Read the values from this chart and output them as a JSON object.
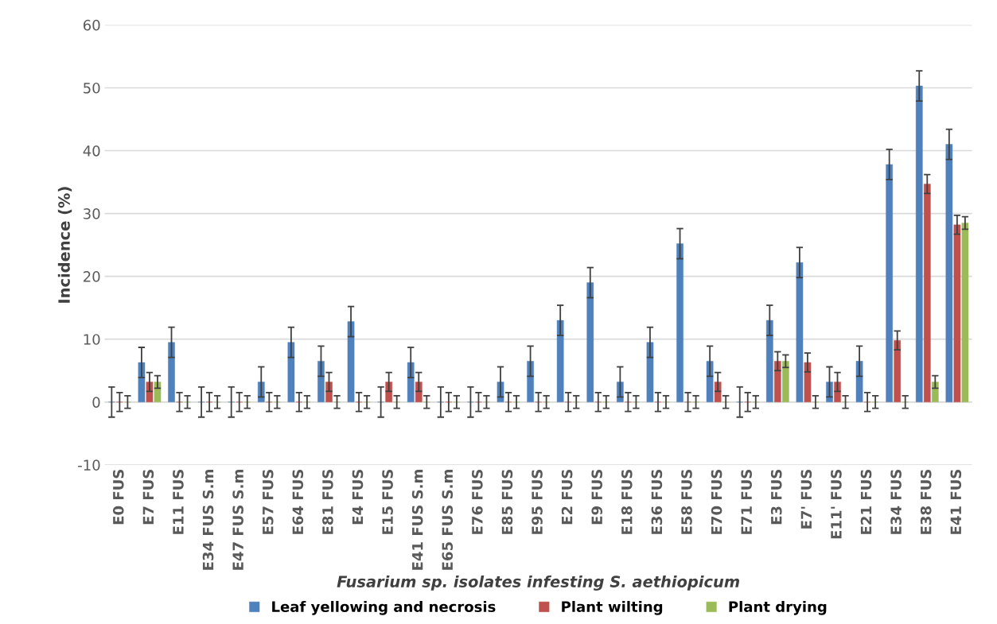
{
  "chart_data": {
    "type": "bar",
    "xlabel": "Fusarium sp. isolates infesting S. aethiopicum",
    "ylabel": "Incidence (%)",
    "categories": [
      "E0 FUS",
      "E7 FUS",
      "E11 FUS",
      "E34 FUS S.m",
      "E47 FUS S.m",
      "E57 FUS",
      "E64 FUS",
      "E81 FUS",
      "E4 FUS",
      "E15 FUS",
      "E41 FUS S.m",
      "E65 FUS S.m",
      "E76 FUS",
      "E85 FUS",
      "E95 FUS",
      "E2 FUS",
      "E9 FUS",
      "E18 FUS",
      "E36 FUS",
      "E58 FUS",
      "E70 FUS",
      "E71 FUS",
      "E3 FUS",
      "E7' FUS",
      "E11' FUS",
      "E21 FUS",
      "E34 FUS",
      "E38 FUS",
      "E41 FUS"
    ],
    "series": [
      {
        "name": "Leaf yellowing and necrosis",
        "color": "#4f81bd",
        "values": [
          0,
          6.3,
          9.5,
          0,
          0,
          3.2,
          9.5,
          6.5,
          12.8,
          0,
          6.3,
          0,
          0,
          3.2,
          6.5,
          13,
          19,
          3.2,
          9.5,
          25.2,
          6.5,
          0,
          13,
          22.2,
          3.2,
          6.5,
          37.8,
          50.3,
          41
        ],
        "errors": [
          2.4,
          2.4,
          2.4,
          2.4,
          2.4,
          2.4,
          2.4,
          2.4,
          2.4,
          2.4,
          2.4,
          2.4,
          2.4,
          2.4,
          2.4,
          2.4,
          2.4,
          2.4,
          2.4,
          2.4,
          2.4,
          2.4,
          2.4,
          2.4,
          2.4,
          2.4,
          2.4,
          2.4,
          2.4
        ]
      },
      {
        "name": "Plant wilting",
        "color": "#c0504d",
        "values": [
          0,
          3.2,
          0,
          0,
          0,
          0,
          0,
          3.2,
          0,
          3.2,
          3.2,
          0,
          0,
          0,
          0,
          0,
          0,
          0,
          0,
          0,
          3.2,
          0,
          6.5,
          6.3,
          3.2,
          0,
          9.8,
          34.7,
          28.2
        ],
        "errors": [
          1.5,
          1.5,
          1.5,
          1.5,
          1.5,
          1.5,
          1.5,
          1.5,
          1.5,
          1.5,
          1.5,
          1.5,
          1.5,
          1.5,
          1.5,
          1.5,
          1.5,
          1.5,
          1.5,
          1.5,
          1.5,
          1.5,
          1.5,
          1.5,
          1.5,
          1.5,
          1.5,
          1.5,
          1.5
        ]
      },
      {
        "name": "Plant drying",
        "color": "#9bbb59",
        "values": [
          0,
          3.2,
          0,
          0,
          0,
          0,
          0,
          0,
          0,
          0,
          0,
          0,
          0,
          0,
          0,
          0,
          0,
          0,
          0,
          0,
          0,
          0,
          6.5,
          0,
          0,
          0,
          0,
          3.2,
          28.5
        ],
        "errors": [
          1,
          1,
          1,
          1,
          1,
          1,
          1,
          1,
          1,
          1,
          1,
          1,
          1,
          1,
          1,
          1,
          1,
          1,
          1,
          1,
          1,
          1,
          1,
          1,
          1,
          1,
          1,
          1,
          1
        ]
      }
    ],
    "ylim": [
      -10,
      60
    ],
    "yticks": [
      -10,
      0,
      10,
      20,
      30,
      40,
      50,
      60
    ],
    "grid": "y",
    "legend": "bottom"
  }
}
